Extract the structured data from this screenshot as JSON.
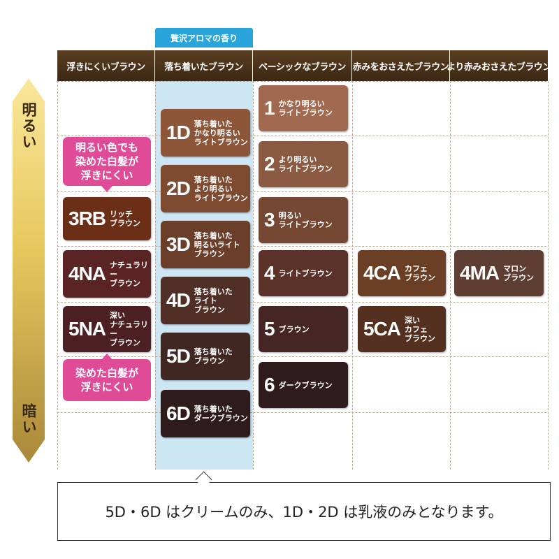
{
  "aroma_label": "贅沢アロマの香り",
  "columns": [
    "浮きにくいブラウン",
    "落ち着いたブラウン",
    "ベーシックなブラウン",
    "赤みをおさえたブラウン",
    "より赤みおさえたブラウン"
  ],
  "scale": {
    "light": "明るい",
    "dark": "暗い"
  },
  "callouts": {
    "top": "明るい色でも\n染めた白髪が\n浮きにくい",
    "bottom": "染めた白髪が\n浮きにくい"
  },
  "swatches": {
    "rb3": {
      "code": "3RB",
      "name": "リッチ\nブラウン",
      "color": "#6b2f18"
    },
    "na4": {
      "code": "4NA",
      "name": "ナチュラリー\nブラウン",
      "color": "#5a2424"
    },
    "na5": {
      "code": "5NA",
      "name": "深い\nナチュラリー\nブラウン",
      "color": "#4c1f24"
    },
    "d1": {
      "code": "1D",
      "name": "落ち着いた\nかなり明るい\nライトブラウン",
      "color": "#8d5639"
    },
    "d2": {
      "code": "2D",
      "name": "落ち着いた\nより明るい\nライトブラウン",
      "color": "#7e4b31"
    },
    "d3": {
      "code": "3D",
      "name": "落ち着いた\n明るいライト\nブラウン",
      "color": "#6b3e2a"
    },
    "d4": {
      "code": "4D",
      "name": "落ち着いた\nライト\nブラウン",
      "color": "#4f2f26"
    },
    "d5": {
      "code": "5D",
      "name": "落ち着いた\nブラウン",
      "color": "#412722"
    },
    "d6": {
      "code": "6D",
      "name": "落ち着いた\nダークブラウン",
      "color": "#2e1c1c"
    },
    "b1": {
      "code": "1",
      "name": "かなり明るい\nライトブラウン",
      "color": "#a16a50"
    },
    "b2": {
      "code": "2",
      "name": "より明るい\nライトブラウン",
      "color": "#8a5a42"
    },
    "b3": {
      "code": "3",
      "name": "明るい\nライトブラウン",
      "color": "#744833"
    },
    "b4": {
      "code": "4",
      "name": "ライトブラウン",
      "color": "#5a3229"
    },
    "b5": {
      "code": "5",
      "name": "ブラウン",
      "color": "#462525"
    },
    "b6": {
      "code": "6",
      "name": "ダークブラウン",
      "color": "#2f1a1c"
    },
    "ca4": {
      "code": "4CA",
      "name": "カフェ\nブラウン",
      "color": "#6b3f26"
    },
    "ca5": {
      "code": "5CA",
      "name": "深い\nカフェ\nブラウン",
      "color": "#53301f"
    },
    "ma4": {
      "code": "4MA",
      "name": "マロン\nブラウン",
      "color": "#5e3d33"
    }
  },
  "note": "5D・6D はクリームのみ、1D・2D は乳液のみとなります。",
  "colors": {
    "header": "#4a321b",
    "aroma": "#2aa5dc",
    "callout": "#e04b98"
  }
}
